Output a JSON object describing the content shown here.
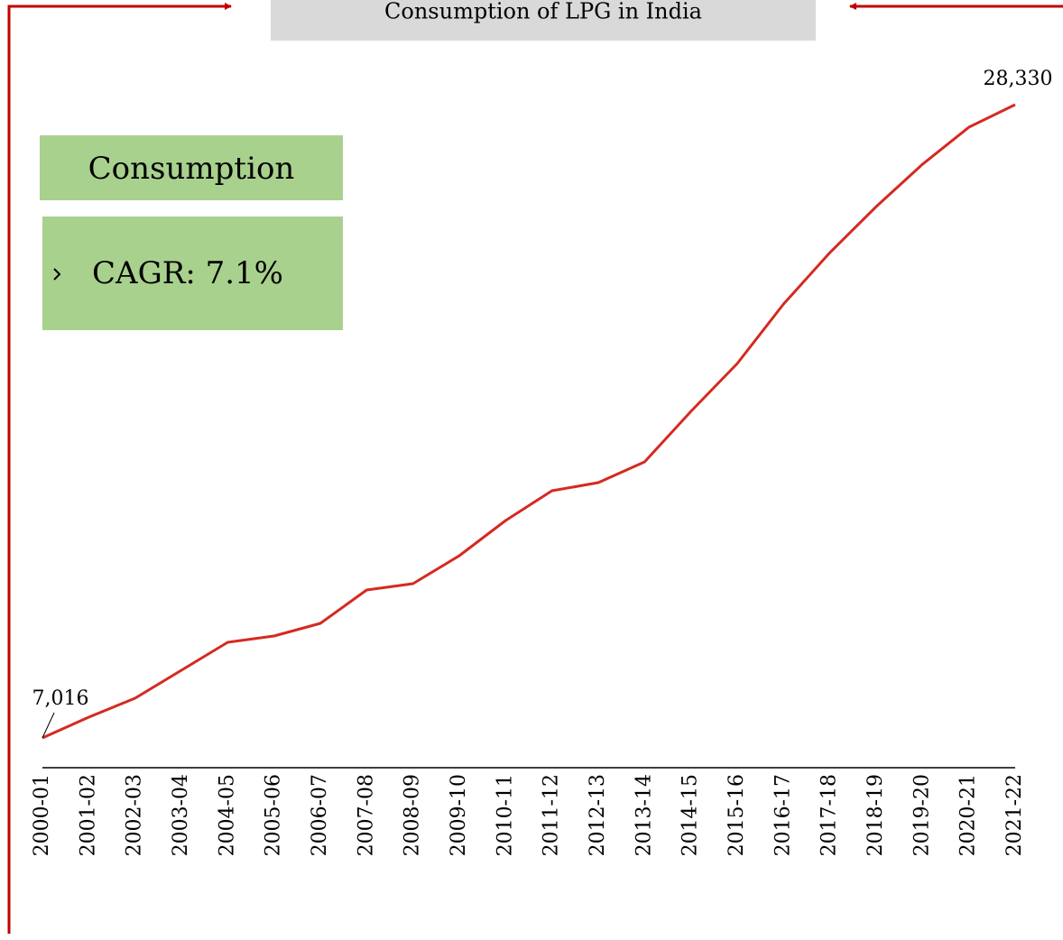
{
  "chart_data": {
    "type": "line",
    "title": "Consumption of LPG in India",
    "panel_title": "Consumption",
    "panel_text": "CAGR: 7.1%",
    "categories": [
      "2000-01",
      "2001-02",
      "2002-03",
      "2003-04",
      "2004-05",
      "2005-06",
      "2006-07",
      "2007-08",
      "2008-09",
      "2009-10",
      "2010-11",
      "2011-12",
      "2012-13",
      "2013-14",
      "2014-15",
      "2015-16",
      "2016-17",
      "2017-18",
      "2018-19",
      "2019-20",
      "2020-21",
      "2021-22"
    ],
    "series": [
      {
        "name": "Consumption",
        "color": "#d42a20",
        "values": [
          7016,
          7714,
          8352,
          9293,
          10234,
          10447,
          10872,
          11995,
          12208,
          13149,
          14333,
          15335,
          15608,
          16307,
          18007,
          19616,
          21620,
          23350,
          24899,
          26325,
          27570,
          28330
        ],
        "value_labels": [
          "7,016",
          null,
          null,
          null,
          null,
          null,
          null,
          null,
          null,
          null,
          null,
          null,
          null,
          null,
          null,
          null,
          null,
          null,
          null,
          null,
          null,
          "28,330"
        ]
      }
    ]
  }
}
